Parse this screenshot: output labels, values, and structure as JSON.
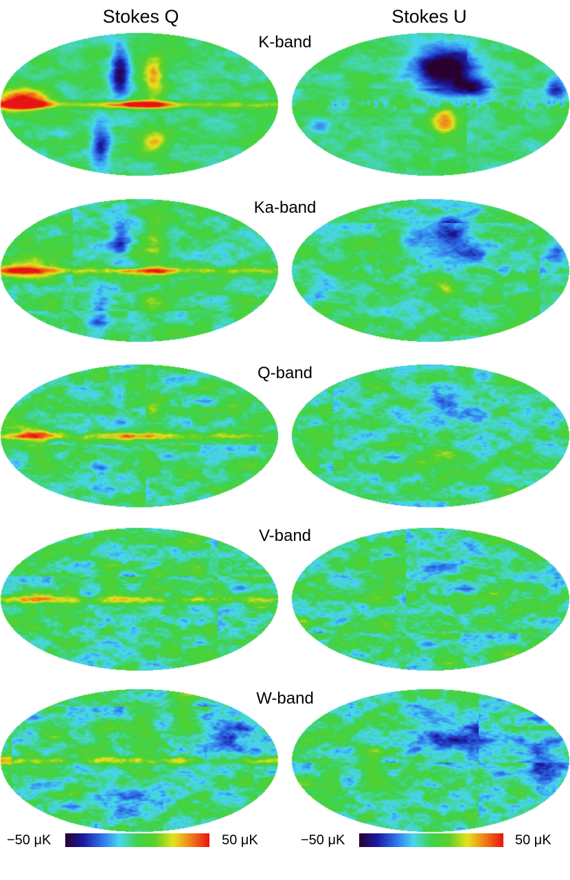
{
  "columns": {
    "q": "Stokes Q",
    "u": "Stokes U"
  },
  "bands": [
    {
      "label": "K-band",
      "strength": 1.0,
      "w_strength": 0
    },
    {
      "label": "Ka-band",
      "strength": 0.55,
      "w_strength": 0
    },
    {
      "label": "Q-band",
      "strength": 0.35,
      "w_strength": 0
    },
    {
      "label": "V-band",
      "strength": 0.12,
      "w_strength": 0
    },
    {
      "label": "W-band",
      "strength": 0.12,
      "w_strength": 1
    }
  ],
  "colorbar": {
    "min_label": "−50 μK",
    "max_label": "50 μK",
    "colors": [
      "#2a0030",
      "#1a1aa0",
      "#2f6fe8",
      "#48d6f2",
      "#3fd24a",
      "#5ad12c",
      "#e6e21e",
      "#f07a18",
      "#e81414"
    ]
  }
}
